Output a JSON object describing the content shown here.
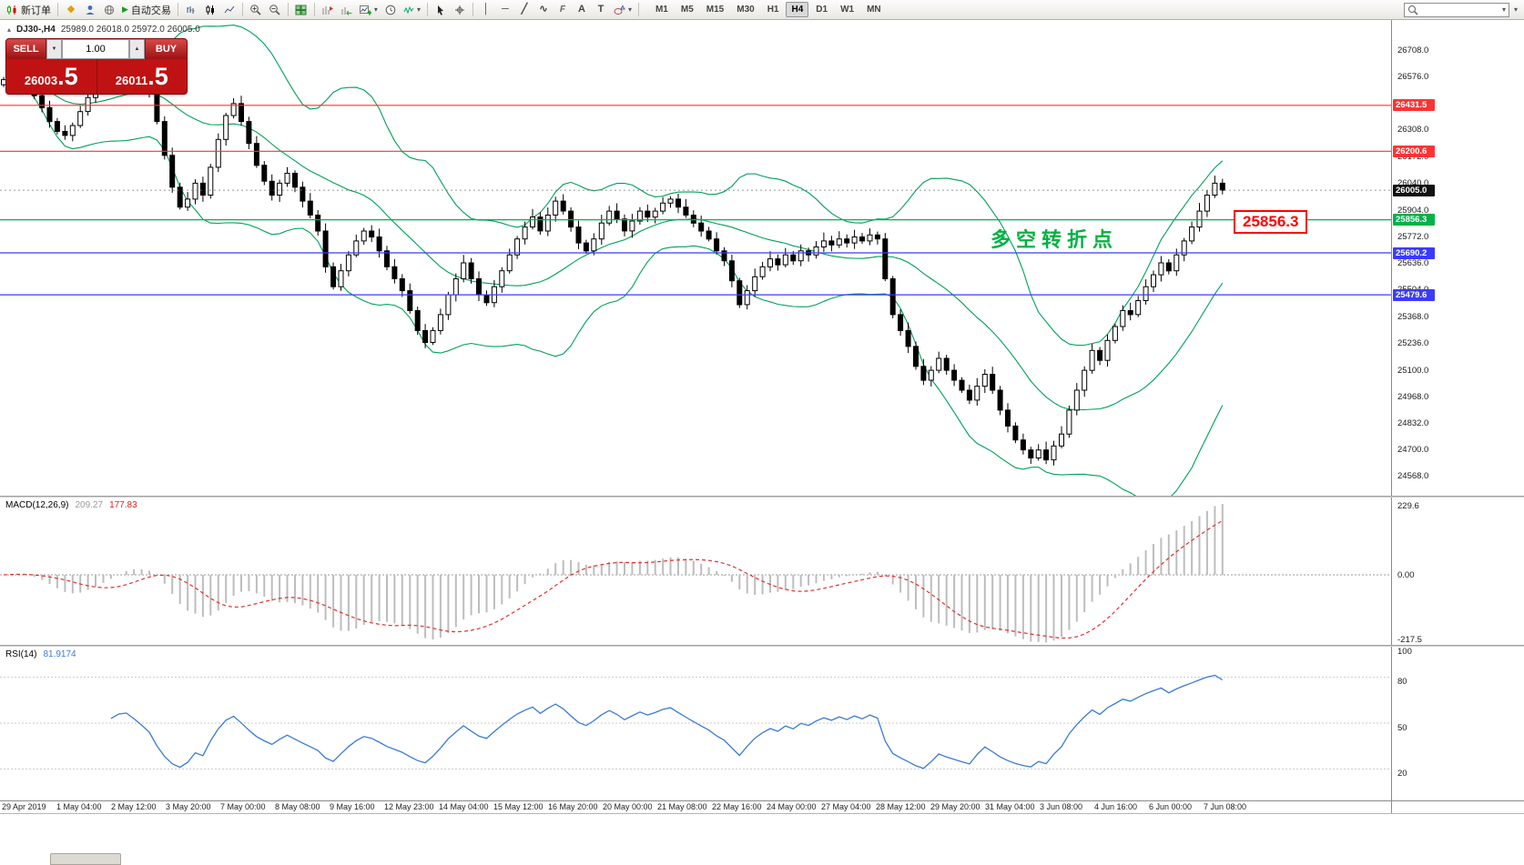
{
  "toolbar": {
    "new_order_label": "新订单",
    "autotrading_label": "自动交易",
    "timeframes": [
      "M1",
      "M5",
      "M15",
      "M30",
      "H1",
      "H4",
      "D1",
      "W1",
      "MN"
    ],
    "active_timeframe": "H4",
    "fibonacci_label": "F",
    "text_tool_label": "A",
    "label_tool_label": "T",
    "search_value": ""
  },
  "icons": {
    "collapse": "▴",
    "chevron_down": "▾",
    "spinner_up": "▲",
    "spinner_down": "▼",
    "diamond": "◆",
    "play": "▶",
    "vline": "│",
    "hline": "─",
    "trendline": "╱",
    "wave": "∿",
    "crosshair": "+"
  },
  "chart": {
    "header": {
      "symbol_period": "DJ30-,H4",
      "ohlc": "25989.0 26018.0 25972.0 26005.0"
    },
    "one_click": {
      "sell_label": "SELL",
      "buy_label": "BUY",
      "volume": "1.00",
      "sell_price_main": "26003",
      "sell_price_frac": ".5",
      "buy_price_main": "26011",
      "buy_price_frac": ".5"
    },
    "annotations": {
      "turning_point_text": "多空转折点",
      "price_callout": "25856.3",
      "green_color": "#00b243",
      "red_color": "#ff0000"
    },
    "bollinger_color": "#00a05a",
    "levels": [
      {
        "price": 26431.5,
        "label": "26431.5",
        "color": "#ff3333"
      },
      {
        "price": 26200.6,
        "label": "26200.6",
        "color": "#ff3333"
      },
      {
        "price": 25856.3,
        "label": "25856.3",
        "color": "#00b24a"
      },
      {
        "price": 25690.2,
        "label": "25690.2",
        "color": "#3b3bff"
      },
      {
        "price": 25479.6,
        "label": "25479.6",
        "color": "#3b3bff"
      }
    ],
    "current_price": {
      "label": "26005.0",
      "price": 26005.0,
      "color": "#111111"
    },
    "y_axis": [
      "26708.0",
      "26576.0",
      "26444.0",
      "26308.0",
      "26172.0",
      "26040.0",
      "25904.0",
      "25772.0",
      "25636.0",
      "25504.0",
      "25368.0",
      "25236.0",
      "25100.0",
      "24968.0",
      "24832.0",
      "24700.0",
      "24568.0"
    ],
    "time_axis": [
      "29 Apr 2019",
      "1 May 04:00",
      "2 May 12:00",
      "3 May 20:00",
      "7 May 00:00",
      "8 May 08:00",
      "9 May 16:00",
      "12 May 23:00",
      "14 May 04:00",
      "15 May 12:00",
      "16 May 20:00",
      "20 May 00:00",
      "21 May 08:00",
      "22 May 16:00",
      "24 May 00:00",
      "27 May 04:00",
      "28 May 12:00",
      "29 May 20:00",
      "31 May 04:00",
      "3 Jun 08:00",
      "4 Jun 16:00",
      "6 Jun 00:00",
      "7 Jun 08:00"
    ]
  },
  "macd": {
    "title": "MACD(12,26,9)",
    "value_main": "209.27",
    "value_signal": "177.83",
    "axis": [
      "229.6",
      "0.00",
      "-217.5"
    ],
    "histogram_color": "#bdbdbd",
    "signal_color": "#e03030"
  },
  "rsi": {
    "title": "RSI(14)",
    "value": "81.9174",
    "line_color": "#3a7bd5",
    "levels": [
      80,
      50,
      20
    ],
    "axis_labels": [
      {
        "v": 100,
        "t": "100"
      },
      {
        "v": 80,
        "t": "80"
      },
      {
        "v": 50,
        "t": "50"
      },
      {
        "v": 20,
        "t": "20"
      }
    ]
  },
  "chart_data": {
    "type": "candlestick",
    "symbol": "DJ30-",
    "timeframe": "H4",
    "bars": 160,
    "price_axis_range": {
      "max": 26860,
      "min": 24470
    },
    "indicators": [
      "Bollinger Bands (20,2)",
      "MACD(12,26,9)",
      "RSI(14)"
    ],
    "indicator_readouts": {
      "macd_main": 209.27,
      "macd_signal": 177.83,
      "rsi": 81.9174
    },
    "closes": [
      26560,
      26590,
      26570,
      26530,
      26480,
      26420,
      26350,
      26300,
      26280,
      26330,
      26400,
      26470,
      26520,
      26560,
      26600,
      26640,
      26650,
      26610,
      26560,
      26500,
      26350,
      26180,
      26020,
      25920,
      25960,
      26040,
      25980,
      26120,
      26260,
      26380,
      26440,
      26350,
      26240,
      26130,
      26050,
      25980,
      26040,
      26090,
      26020,
      25950,
      25880,
      25800,
      25620,
      25520,
      25600,
      25680,
      25750,
      25800,
      25770,
      25700,
      25620,
      25560,
      25500,
      25400,
      25300,
      25240,
      25300,
      25380,
      25480,
      25560,
      25640,
      25560,
      25480,
      25440,
      25520,
      25600,
      25680,
      25760,
      25820,
      25870,
      25800,
      25880,
      25950,
      25900,
      25820,
      25740,
      25700,
      25760,
      25840,
      25900,
      25860,
      25800,
      25850,
      25900,
      25870,
      25900,
      25940,
      25960,
      25920,
      25880,
      25840,
      25800,
      25760,
      25700,
      25650,
      25550,
      25430,
      25500,
      25570,
      25620,
      25660,
      25630,
      25680,
      25650,
      25700,
      25680,
      25720,
      25750,
      25730,
      25760,
      25740,
      25770,
      25750,
      25780,
      25760,
      25560,
      25380,
      25300,
      25220,
      25120,
      25050,
      25100,
      25160,
      25100,
      25050,
      25000,
      24950,
      25020,
      25080,
      25000,
      24900,
      24820,
      24750,
      24700,
      24660,
      24700,
      24650,
      24720,
      24780,
      24900,
      25000,
      25100,
      25200,
      25150,
      25250,
      25320,
      25400,
      25380,
      25450,
      25520,
      25580,
      25640,
      25600,
      25680,
      25750,
      25820,
      25900,
      25980,
      26040,
      26005
    ]
  }
}
